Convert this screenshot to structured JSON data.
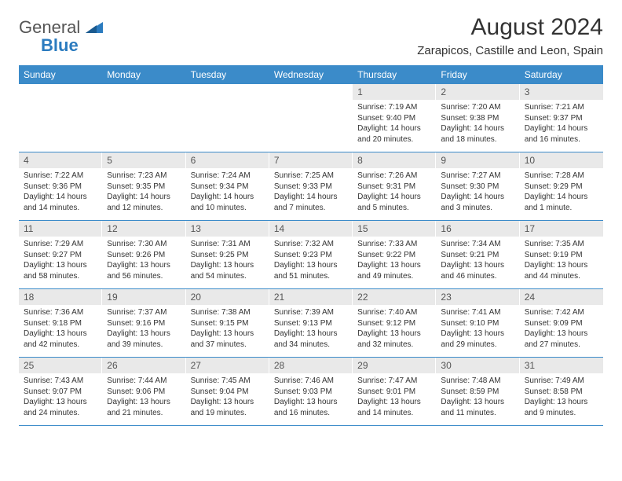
{
  "logo": {
    "word1": "General",
    "word2": "Blue"
  },
  "title": "August 2024",
  "location": "Zarapicos, Castille and Leon, Spain",
  "colors": {
    "header_bg": "#3b8bc9",
    "header_text": "#ffffff",
    "daynum_bg": "#e9e9e9",
    "daynum_text": "#555555",
    "border": "#3b8bc9",
    "logo_gray": "#555555",
    "logo_blue": "#2b7bbf",
    "body_text": "#333333"
  },
  "dayHeaders": [
    "Sunday",
    "Monday",
    "Tuesday",
    "Wednesday",
    "Thursday",
    "Friday",
    "Saturday"
  ],
  "weeks": [
    [
      null,
      null,
      null,
      null,
      {
        "n": "1",
        "sr": "7:19 AM",
        "ss": "9:40 PM",
        "dh": "14",
        "dm": "20"
      },
      {
        "n": "2",
        "sr": "7:20 AM",
        "ss": "9:38 PM",
        "dh": "14",
        "dm": "18"
      },
      {
        "n": "3",
        "sr": "7:21 AM",
        "ss": "9:37 PM",
        "dh": "14",
        "dm": "16"
      }
    ],
    [
      {
        "n": "4",
        "sr": "7:22 AM",
        "ss": "9:36 PM",
        "dh": "14",
        "dm": "14"
      },
      {
        "n": "5",
        "sr": "7:23 AM",
        "ss": "9:35 PM",
        "dh": "14",
        "dm": "12"
      },
      {
        "n": "6",
        "sr": "7:24 AM",
        "ss": "9:34 PM",
        "dh": "14",
        "dm": "10"
      },
      {
        "n": "7",
        "sr": "7:25 AM",
        "ss": "9:33 PM",
        "dh": "14",
        "dm": "7"
      },
      {
        "n": "8",
        "sr": "7:26 AM",
        "ss": "9:31 PM",
        "dh": "14",
        "dm": "5"
      },
      {
        "n": "9",
        "sr": "7:27 AM",
        "ss": "9:30 PM",
        "dh": "14",
        "dm": "3"
      },
      {
        "n": "10",
        "sr": "7:28 AM",
        "ss": "9:29 PM",
        "dh": "14",
        "dm": "1"
      }
    ],
    [
      {
        "n": "11",
        "sr": "7:29 AM",
        "ss": "9:27 PM",
        "dh": "13",
        "dm": "58"
      },
      {
        "n": "12",
        "sr": "7:30 AM",
        "ss": "9:26 PM",
        "dh": "13",
        "dm": "56"
      },
      {
        "n": "13",
        "sr": "7:31 AM",
        "ss": "9:25 PM",
        "dh": "13",
        "dm": "54"
      },
      {
        "n": "14",
        "sr": "7:32 AM",
        "ss": "9:23 PM",
        "dh": "13",
        "dm": "51"
      },
      {
        "n": "15",
        "sr": "7:33 AM",
        "ss": "9:22 PM",
        "dh": "13",
        "dm": "49"
      },
      {
        "n": "16",
        "sr": "7:34 AM",
        "ss": "9:21 PM",
        "dh": "13",
        "dm": "46"
      },
      {
        "n": "17",
        "sr": "7:35 AM",
        "ss": "9:19 PM",
        "dh": "13",
        "dm": "44"
      }
    ],
    [
      {
        "n": "18",
        "sr": "7:36 AM",
        "ss": "9:18 PM",
        "dh": "13",
        "dm": "42"
      },
      {
        "n": "19",
        "sr": "7:37 AM",
        "ss": "9:16 PM",
        "dh": "13",
        "dm": "39"
      },
      {
        "n": "20",
        "sr": "7:38 AM",
        "ss": "9:15 PM",
        "dh": "13",
        "dm": "37"
      },
      {
        "n": "21",
        "sr": "7:39 AM",
        "ss": "9:13 PM",
        "dh": "13",
        "dm": "34"
      },
      {
        "n": "22",
        "sr": "7:40 AM",
        "ss": "9:12 PM",
        "dh": "13",
        "dm": "32"
      },
      {
        "n": "23",
        "sr": "7:41 AM",
        "ss": "9:10 PM",
        "dh": "13",
        "dm": "29"
      },
      {
        "n": "24",
        "sr": "7:42 AM",
        "ss": "9:09 PM",
        "dh": "13",
        "dm": "27"
      }
    ],
    [
      {
        "n": "25",
        "sr": "7:43 AM",
        "ss": "9:07 PM",
        "dh": "13",
        "dm": "24"
      },
      {
        "n": "26",
        "sr": "7:44 AM",
        "ss": "9:06 PM",
        "dh": "13",
        "dm": "21"
      },
      {
        "n": "27",
        "sr": "7:45 AM",
        "ss": "9:04 PM",
        "dh": "13",
        "dm": "19"
      },
      {
        "n": "28",
        "sr": "7:46 AM",
        "ss": "9:03 PM",
        "dh": "13",
        "dm": "16"
      },
      {
        "n": "29",
        "sr": "7:47 AM",
        "ss": "9:01 PM",
        "dh": "13",
        "dm": "14"
      },
      {
        "n": "30",
        "sr": "7:48 AM",
        "ss": "8:59 PM",
        "dh": "13",
        "dm": "11"
      },
      {
        "n": "31",
        "sr": "7:49 AM",
        "ss": "8:58 PM",
        "dh": "13",
        "dm": "9"
      }
    ]
  ],
  "labels": {
    "sunrise": "Sunrise: ",
    "sunset": "Sunset: ",
    "daylight": "Daylight: ",
    "hours": " hours",
    "and": "and ",
    "minute_s_singular": " minute.",
    "minute_s_plural": " minutes."
  }
}
